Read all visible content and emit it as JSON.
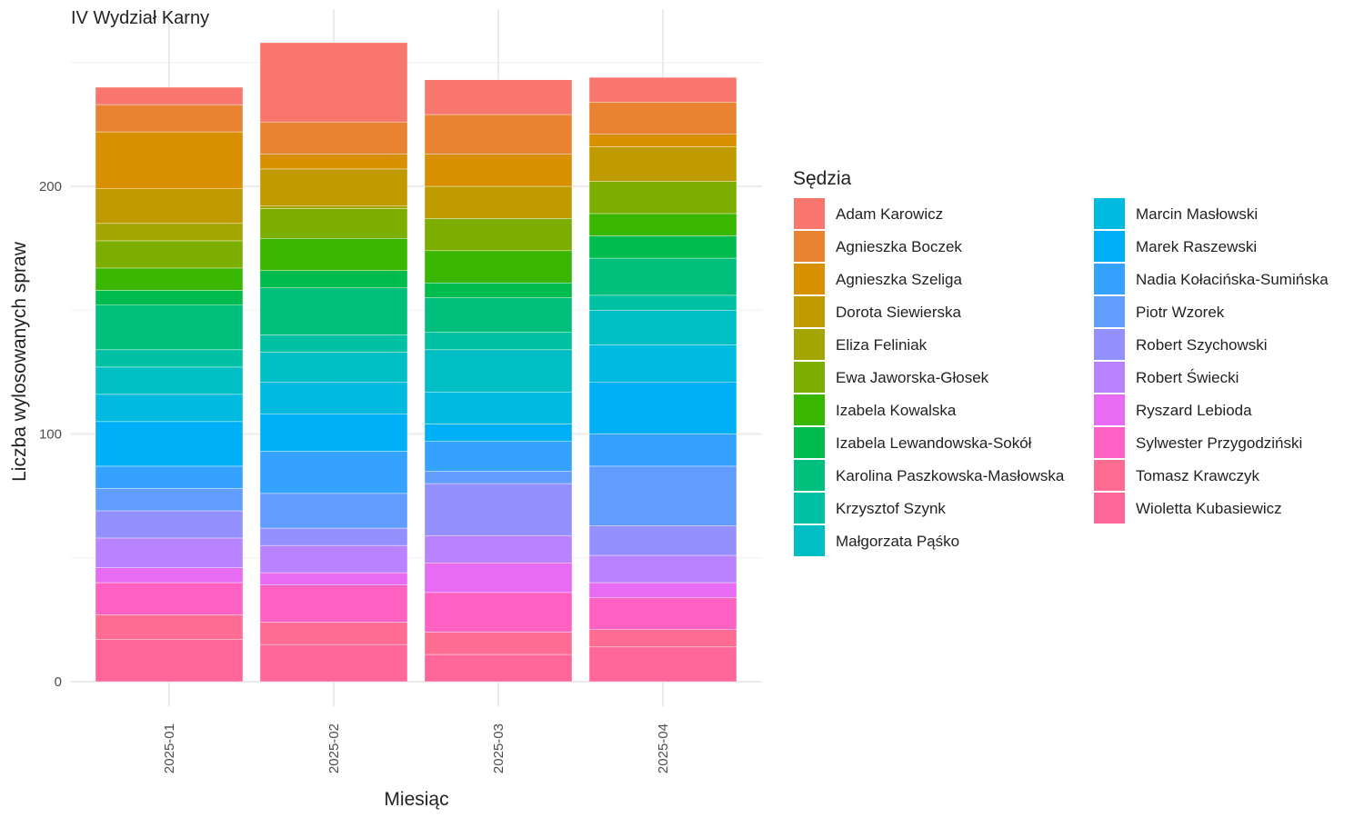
{
  "chart_data": {
    "type": "bar",
    "stacked": true,
    "title": "IV Wydział Karny",
    "xlabel": "Miesiąc",
    "ylabel": "Liczba wylosowanych spraw",
    "categories": [
      "2025-01",
      "2025-02",
      "2025-03",
      "2025-04"
    ],
    "ylim": [
      0,
      270
    ],
    "yticks": [
      0,
      100,
      200
    ],
    "grid": true,
    "legend_title": "Sędzia",
    "legend_position": "right",
    "series": [
      {
        "name": "Adam Karowicz",
        "color": "#F8766D",
        "values": [
          7,
          32,
          14,
          10
        ]
      },
      {
        "name": "Agnieszka Boczek",
        "color": "#EA8331",
        "values": [
          11,
          13,
          16,
          13
        ]
      },
      {
        "name": "Agnieszka Szeliga",
        "color": "#D89000",
        "values": [
          23,
          6,
          13,
          5
        ]
      },
      {
        "name": "Dorota Siewierska",
        "color": "#C09B00",
        "values": [
          14,
          15,
          13,
          14
        ]
      },
      {
        "name": "Eliza Feliniak",
        "color": "#A3A500",
        "values": [
          7,
          1,
          0,
          0
        ]
      },
      {
        "name": "Ewa Jaworska-Głosek",
        "color": "#7CAE00",
        "values": [
          11,
          12,
          13,
          13
        ]
      },
      {
        "name": "Izabela Kowalska",
        "color": "#39B600",
        "values": [
          9,
          13,
          13,
          9
        ]
      },
      {
        "name": "Izabela Lewandowska-Sokół",
        "color": "#00BB4E",
        "values": [
          6,
          7,
          6,
          9
        ]
      },
      {
        "name": "Karolina Paszkowska-Masłowska",
        "color": "#00BF7D",
        "values": [
          18,
          19,
          14,
          15
        ]
      },
      {
        "name": "Krzysztof Szynk",
        "color": "#00C1A3",
        "values": [
          7,
          7,
          7,
          6
        ]
      },
      {
        "name": "Małgorzata Pąśko",
        "color": "#00BFC4",
        "values": [
          11,
          12,
          17,
          14
        ]
      },
      {
        "name": "Marcin Masłowski",
        "color": "#00BAE0",
        "values": [
          11,
          13,
          13,
          15
        ]
      },
      {
        "name": "Marek Raszewski",
        "color": "#00B0F6",
        "values": [
          18,
          15,
          7,
          21
        ]
      },
      {
        "name": "Nadia Kołacińska-Sumińska",
        "color": "#35A2FF",
        "values": [
          9,
          17,
          12,
          13
        ]
      },
      {
        "name": "Piotr Wzorek",
        "color": "#619CFF",
        "values": [
          9,
          14,
          5,
          24
        ]
      },
      {
        "name": "Robert Szychowski",
        "color": "#9590FF",
        "values": [
          11,
          7,
          21,
          12
        ]
      },
      {
        "name": "Robert Świecki",
        "color": "#B983FF",
        "values": [
          12,
          11,
          11,
          11
        ]
      },
      {
        "name": "Ryszard Lebioda",
        "color": "#E76BF3",
        "values": [
          6,
          5,
          12,
          6
        ]
      },
      {
        "name": "Sylwester Przygodziński",
        "color": "#FF61C3",
        "values": [
          13,
          15,
          16,
          13
        ]
      },
      {
        "name": "Tomasz Krawczyk",
        "color": "#FF6C91",
        "values": [
          10,
          9,
          9,
          7
        ]
      },
      {
        "name": "Wioletta Kubasiewicz",
        "color": "#FF6699",
        "values": [
          17,
          15,
          11,
          14
        ]
      }
    ]
  }
}
